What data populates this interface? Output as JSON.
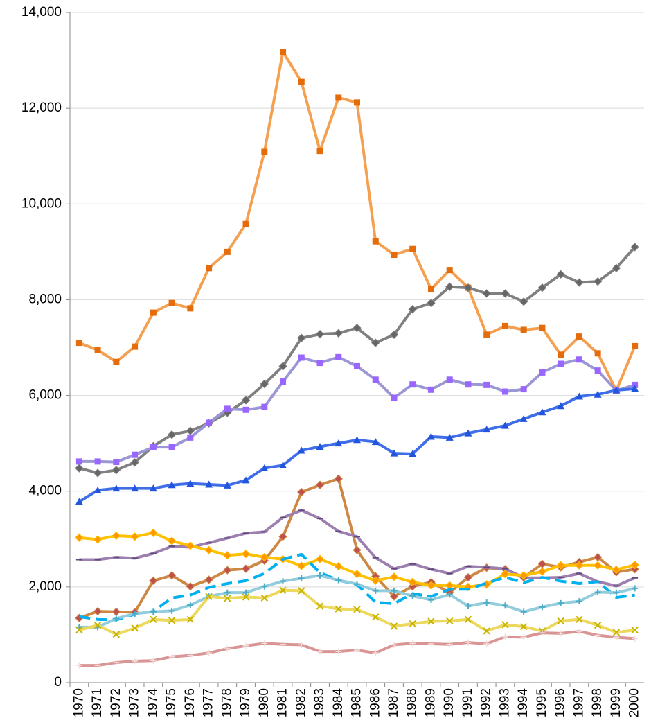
{
  "chart_data": {
    "type": "line",
    "categories": [
      "1970",
      "1971",
      "1972",
      "1973",
      "1974",
      "1975",
      "1976",
      "1977",
      "1978",
      "1979",
      "1980",
      "1981",
      "1982",
      "1983",
      "1984",
      "1985",
      "1986",
      "1987",
      "1988",
      "1989",
      "1990",
      "1991",
      "1992",
      "1993",
      "1994",
      "1995",
      "1996",
      "1997",
      "1998",
      "1999",
      "2000"
    ],
    "ylim": [
      0,
      14000
    ],
    "yticks": [
      0,
      {
        "value": 2000,
        "label": "2,000"
      },
      {
        "value": 4000,
        "label": "4,000"
      },
      {
        "value": 6000,
        "label": "6,000"
      },
      {
        "value": 8000,
        "label": "8,000"
      },
      {
        "value": 10000,
        "label": "10,000"
      },
      {
        "value": 12000,
        "label": "12,000"
      },
      {
        "value": 14000,
        "label": "14,000"
      }
    ],
    "grid": true,
    "series": [
      {
        "color": "#f5a050",
        "marker": "square",
        "marker_color": "#e46c0a",
        "values": [
          7100,
          6950,
          6700,
          7020,
          7730,
          7930,
          7820,
          8660,
          9000,
          9580,
          11090,
          13180,
          12550,
          11110,
          12220,
          12120,
          9220,
          8940,
          9060,
          8220,
          8620,
          8250,
          7270,
          7450,
          7370,
          7410,
          6850,
          7230,
          6880,
          6100,
          7030
        ]
      },
      {
        "color": "#808080",
        "marker": "diamond",
        "marker_color": "#666666",
        "values": [
          4480,
          4380,
          4440,
          4600,
          4940,
          5180,
          5260,
          5420,
          5640,
          5900,
          6240,
          6610,
          7200,
          7280,
          7300,
          7410,
          7100,
          7270,
          7800,
          7930,
          8270,
          8250,
          8130,
          8130,
          7960,
          8250,
          8530,
          8360,
          8380,
          8660,
          9100
        ]
      },
      {
        "color": "#9b96d4",
        "marker": "square",
        "marker_color": "#9966ff",
        "values": [
          4620,
          4620,
          4610,
          4760,
          4920,
          4920,
          5120,
          5430,
          5720,
          5700,
          5760,
          6290,
          6790,
          6680,
          6800,
          6610,
          6330,
          5950,
          6230,
          6120,
          6330,
          6230,
          6220,
          6080,
          6130,
          6480,
          6660,
          6750,
          6520,
          6100,
          6220
        ]
      },
      {
        "color": "#3f6ee8",
        "marker": "triangle",
        "marker_color": "#2255dd",
        "values": [
          3780,
          4020,
          4060,
          4060,
          4060,
          4130,
          4160,
          4140,
          4120,
          4230,
          4480,
          4540,
          4850,
          4930,
          5000,
          5070,
          5030,
          4790,
          4780,
          5140,
          5120,
          5210,
          5290,
          5370,
          5510,
          5650,
          5780,
          5980,
          6020,
          6110,
          6140
        ]
      },
      {
        "color": "#cc8844",
        "marker": "diamond",
        "marker_color": "#c0504d",
        "values": [
          1350,
          1490,
          1480,
          1470,
          2130,
          2240,
          2010,
          2150,
          2350,
          2380,
          2550,
          3050,
          3980,
          4130,
          4260,
          2770,
          2220,
          1800,
          2010,
          2100,
          1880,
          2200,
          2400,
          2370,
          2200,
          2480,
          2410,
          2520,
          2620,
          2310,
          2370
        ]
      },
      {
        "color": "#9e80b0",
        "marker": "dash",
        "marker_color": "#604a7b",
        "values": [
          2570,
          2570,
          2620,
          2600,
          2700,
          2850,
          2830,
          2920,
          3020,
          3120,
          3150,
          3450,
          3600,
          3430,
          3160,
          3050,
          2610,
          2380,
          2480,
          2370,
          2280,
          2430,
          2410,
          2380,
          2190,
          2190,
          2200,
          2280,
          2110,
          2020,
          2190
        ]
      },
      {
        "color": "#ffc000",
        "marker": "diamond",
        "marker_color": "#ff9900",
        "values": [
          3030,
          2990,
          3070,
          3050,
          3130,
          2960,
          2860,
          2770,
          2660,
          2690,
          2620,
          2580,
          2440,
          2580,
          2430,
          2270,
          2130,
          2210,
          2100,
          2030,
          2030,
          2000,
          2050,
          2270,
          2240,
          2320,
          2450,
          2450,
          2450,
          2360,
          2460
        ]
      },
      {
        "color": "#00b0f0",
        "dashed": true,
        "values": [
          1380,
          1320,
          1310,
          1430,
          1490,
          1770,
          1830,
          1990,
          2070,
          2130,
          2280,
          2580,
          2680,
          2300,
          2140,
          2050,
          1680,
          1650,
          1860,
          1800,
          1950,
          1950,
          2080,
          2200,
          2090,
          2200,
          2120,
          2070,
          2110,
          1780,
          1830
        ]
      },
      {
        "color": "#93cddd",
        "marker": "cross",
        "marker_color": "#4bacc6",
        "values": [
          1160,
          1160,
          1340,
          1440,
          1480,
          1500,
          1620,
          1800,
          1880,
          1880,
          2010,
          2120,
          2180,
          2240,
          2140,
          2060,
          1920,
          1920,
          1810,
          1730,
          1840,
          1600,
          1670,
          1610,
          1480,
          1580,
          1660,
          1700,
          1890,
          1880,
          1970
        ]
      },
      {
        "color": "#ecd85a",
        "marker": "x",
        "marker_color": "#c8b400",
        "values": [
          1100,
          1200,
          1010,
          1140,
          1320,
          1300,
          1320,
          1800,
          1760,
          1790,
          1770,
          1930,
          1920,
          1600,
          1540,
          1530,
          1370,
          1180,
          1230,
          1280,
          1290,
          1320,
          1080,
          1210,
          1170,
          1080,
          1290,
          1320,
          1200,
          1050,
          1100
        ]
      },
      {
        "color": "#d99594",
        "marker": "plus",
        "marker_color": "#f2dcdb",
        "values": [
          360,
          360,
          420,
          450,
          460,
          540,
          570,
          620,
          710,
          770,
          820,
          800,
          790,
          650,
          650,
          680,
          620,
          790,
          820,
          810,
          800,
          840,
          810,
          960,
          950,
          1040,
          1030,
          1070,
          990,
          950,
          920
        ]
      }
    ]
  }
}
